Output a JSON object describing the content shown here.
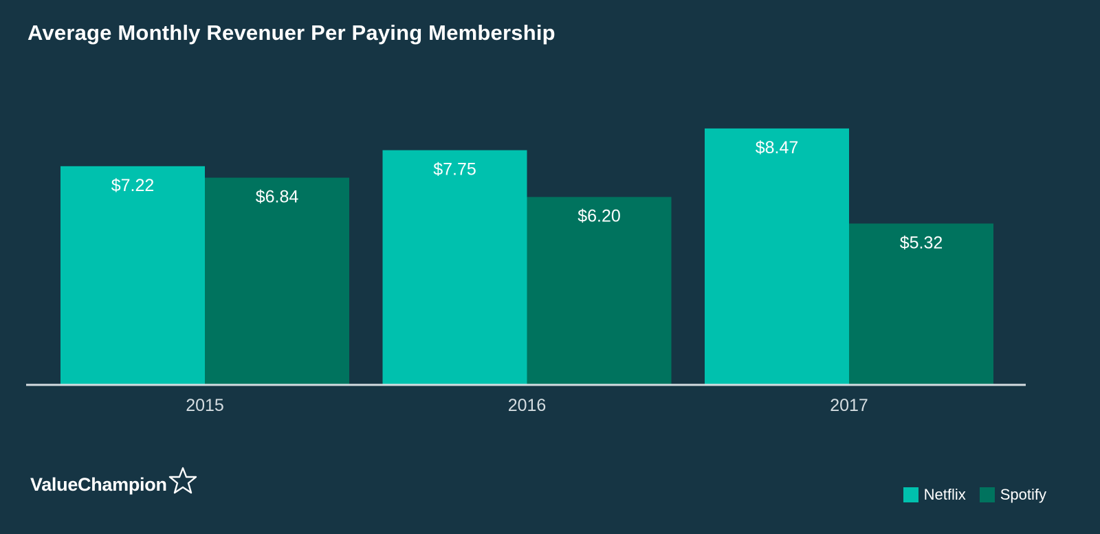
{
  "chart_data": {
    "type": "bar",
    "title": "Average Monthly Revenuer Per Paying Membership",
    "categories": [
      "2015",
      "2016",
      "2017"
    ],
    "series": [
      {
        "name": "Netflix",
        "color": "#00c1ae",
        "values": [
          7.22,
          7.75,
          8.47
        ],
        "labels": [
          "$7.22",
          "$7.75",
          "$8.47"
        ]
      },
      {
        "name": "Spotify",
        "color": "#00735e",
        "values": [
          6.84,
          6.2,
          5.32
        ],
        "labels": [
          "$6.84",
          "$6.20",
          "$5.32"
        ]
      }
    ],
    "xlabel": "",
    "ylabel": "",
    "ylim": [
      0,
      9
    ],
    "grid": false,
    "legend_position": "bottom-right"
  },
  "brand": {
    "name": "ValueChampion",
    "icon": "star-outline-icon"
  },
  "colors": {
    "background": "#163544",
    "axis": "#d5dde1"
  }
}
